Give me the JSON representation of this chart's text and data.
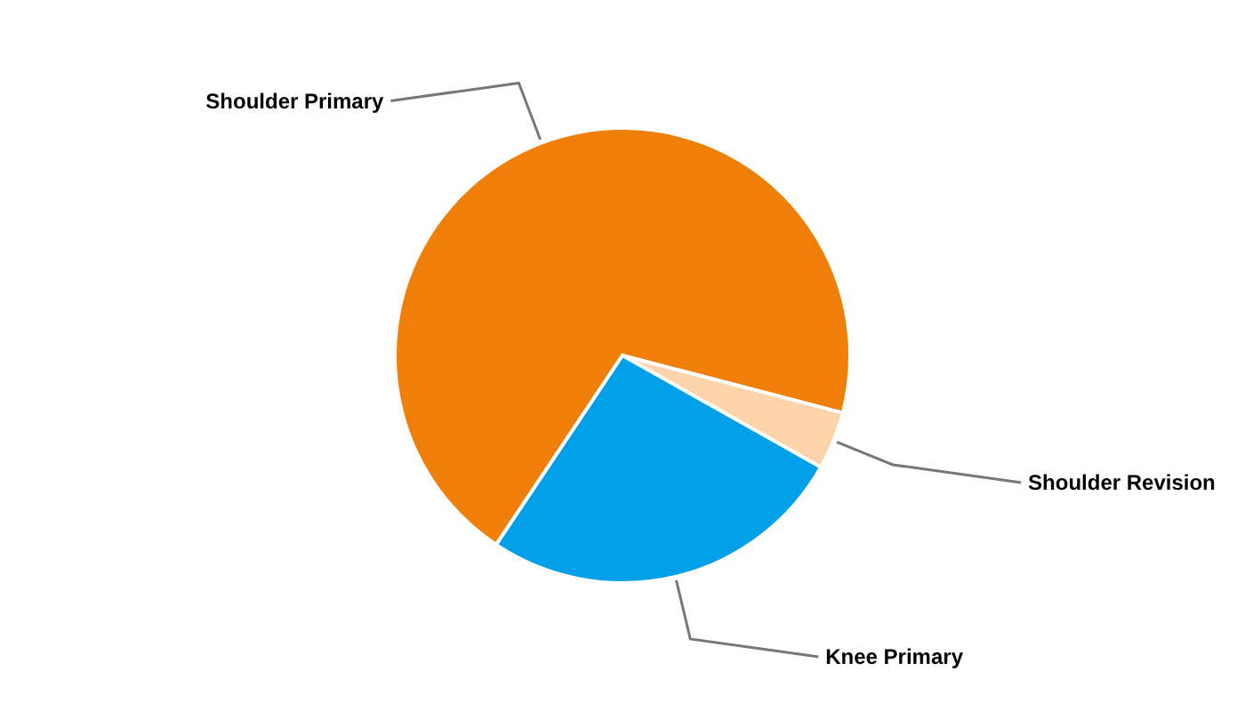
{
  "chart_data": {
    "type": "pie",
    "categories": [
      "Shoulder Primary",
      "Shoulder Revision",
      "Knee Primary"
    ],
    "values": [
      69.7,
      4.1,
      26.2
    ],
    "colors": [
      "#f07f09",
      "#fcd3ab",
      "#00a0e8"
    ]
  }
}
